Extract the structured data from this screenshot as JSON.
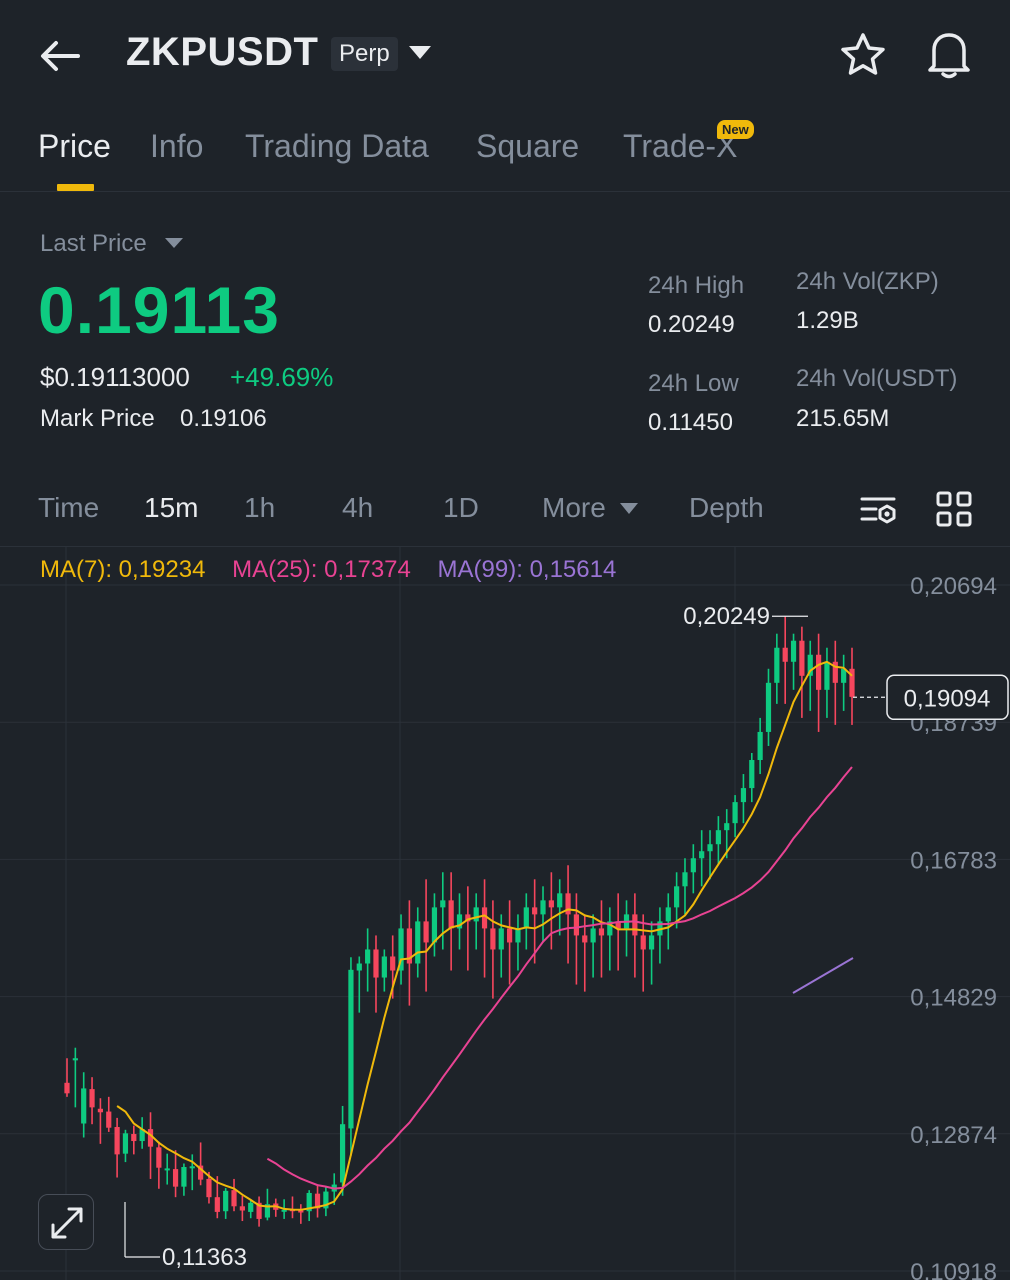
{
  "header": {
    "symbol": "ZKPUSDT",
    "contract_type": "Perp",
    "icons": [
      "back-arrow-icon",
      "caret-down-icon",
      "star-icon",
      "bell-icon"
    ]
  },
  "tabs": [
    {
      "label": "Price",
      "active": true
    },
    {
      "label": "Info",
      "active": false
    },
    {
      "label": "Trading Data",
      "active": false
    },
    {
      "label": "Square",
      "active": false
    },
    {
      "label": "Trade-X",
      "active": false,
      "badge": "New"
    }
  ],
  "price_panel": {
    "last_price_label": "Last Price",
    "last_price": "0.19113",
    "usd_price": "$0.19113000",
    "change_pct": "+49.69%",
    "mark_price_label": "Mark Price",
    "mark_price": "0.19106"
  },
  "stats": {
    "high_label": "24h High",
    "high_value": "0.20249",
    "low_label": "24h Low",
    "low_value": "0.11450",
    "vol_zkp_label": "24h Vol(ZKP)",
    "vol_zkp_value": "1.29B",
    "vol_usdt_label": "24h Vol(USDT)",
    "vol_usdt_value": "215.65M"
  },
  "intervals": {
    "items": [
      "Time",
      "15m",
      "1h",
      "4h",
      "1D",
      "More",
      "Depth"
    ],
    "active": "15m"
  },
  "indicators": {
    "ma7": "MA(7): 0,19234",
    "ma25": "MA(25): 0,17374",
    "ma99": "MA(99): 0,15614"
  },
  "colors": {
    "up": "#0ecb81",
    "down": "#f6465d",
    "ma7": "#f0b90b",
    "ma25": "#e84393",
    "ma99": "#9a74d4",
    "accent": "#f0b90b",
    "background": "#1e2329"
  },
  "chart_data": {
    "type": "candlestick",
    "y_ticks": [
      "0,20694",
      "0,18739",
      "0,16783",
      "0,14829",
      "0,12874",
      "0,10918"
    ],
    "ylim": [
      0.10918,
      0.20694
    ],
    "grid": true,
    "high_marker": "0,20249",
    "low_marker": "0,11363",
    "current_price_label": "0,19094",
    "current_price": 0.19094,
    "candles": [
      [
        0.136,
        0.1395,
        0.1345,
        0.134
      ],
      [
        0.1392,
        0.141,
        0.1395,
        0.1325
      ],
      [
        0.1302,
        0.1375,
        0.1352,
        0.1282
      ],
      [
        0.1351,
        0.1368,
        0.1325,
        0.1301
      ],
      [
        0.1323,
        0.1338,
        0.1318,
        0.1273
      ],
      [
        0.1319,
        0.134,
        0.1296,
        0.129
      ],
      [
        0.1297,
        0.131,
        0.1258,
        0.1225
      ],
      [
        0.1259,
        0.1293,
        0.1288,
        0.1247
      ],
      [
        0.1287,
        0.1299,
        0.1277,
        0.1258
      ],
      [
        0.1277,
        0.1311,
        0.1294,
        0.1266
      ],
      [
        0.1294,
        0.1318,
        0.1269,
        0.1223
      ],
      [
        0.1268,
        0.1276,
        0.1239,
        0.1209
      ],
      [
        0.1238,
        0.1259,
        0.1238,
        0.1215
      ],
      [
        0.1237,
        0.1264,
        0.1212,
        0.1197
      ],
      [
        0.1212,
        0.1245,
        0.124,
        0.1199
      ],
      [
        0.124,
        0.1258,
        0.1241,
        0.1207
      ],
      [
        0.1242,
        0.1275,
        0.1222,
        0.1214
      ],
      [
        0.1223,
        0.1233,
        0.1197,
        0.1188
      ],
      [
        0.1197,
        0.1227,
        0.1176,
        0.1167
      ],
      [
        0.1177,
        0.121,
        0.1206,
        0.1166
      ],
      [
        0.1207,
        0.1223,
        0.1184,
        0.1177
      ],
      [
        0.1184,
        0.1199,
        0.1178,
        0.1163
      ],
      [
        0.1176,
        0.1193,
        0.1189,
        0.1167
      ],
      [
        0.1189,
        0.1198,
        0.1166,
        0.1155
      ],
      [
        0.1168,
        0.1209,
        0.1187,
        0.1164
      ],
      [
        0.1188,
        0.1195,
        0.1179,
        0.1169
      ],
      [
        0.1178,
        0.1194,
        0.1179,
        0.1166
      ],
      [
        0.118,
        0.1198,
        0.1177,
        0.1167
      ],
      [
        0.1178,
        0.1187,
        0.1176,
        0.1159
      ],
      [
        0.1177,
        0.1207,
        0.1203,
        0.1163
      ],
      [
        0.1202,
        0.1215,
        0.1181,
        0.1168
      ],
      [
        0.1181,
        0.1212,
        0.1205,
        0.117
      ],
      [
        0.1205,
        0.1231,
        0.1215,
        0.1186
      ],
      [
        0.1218,
        0.1327,
        0.1301,
        0.1199
      ],
      [
        0.1295,
        0.1539,
        0.1521,
        0.1256
      ],
      [
        0.152,
        0.154,
        0.153,
        0.146
      ],
      [
        0.153,
        0.158,
        0.155,
        0.149
      ],
      [
        0.155,
        0.157,
        0.151,
        0.146
      ],
      [
        0.151,
        0.155,
        0.154,
        0.149
      ],
      [
        0.154,
        0.157,
        0.152,
        0.148
      ],
      [
        0.152,
        0.16,
        0.158,
        0.15
      ],
      [
        0.158,
        0.162,
        0.153,
        0.147
      ],
      [
        0.153,
        0.161,
        0.159,
        0.151
      ],
      [
        0.159,
        0.165,
        0.156,
        0.149
      ],
      [
        0.156,
        0.163,
        0.161,
        0.154
      ],
      [
        0.161,
        0.166,
        0.162,
        0.155
      ],
      [
        0.162,
        0.166,
        0.158,
        0.152
      ],
      [
        0.158,
        0.163,
        0.16,
        0.155
      ],
      [
        0.16,
        0.164,
        0.159,
        0.152
      ],
      [
        0.159,
        0.163,
        0.161,
        0.155
      ],
      [
        0.161,
        0.165,
        0.158,
        0.151
      ],
      [
        0.158,
        0.162,
        0.155,
        0.148
      ],
      [
        0.155,
        0.16,
        0.158,
        0.151
      ],
      [
        0.158,
        0.162,
        0.156,
        0.15
      ],
      [
        0.156,
        0.16,
        0.158,
        0.152
      ],
      [
        0.158,
        0.163,
        0.161,
        0.155
      ],
      [
        0.161,
        0.165,
        0.16,
        0.153
      ],
      [
        0.16,
        0.164,
        0.162,
        0.156
      ],
      [
        0.162,
        0.166,
        0.161,
        0.155
      ],
      [
        0.161,
        0.165,
        0.163,
        0.157
      ],
      [
        0.163,
        0.167,
        0.16,
        0.153
      ],
      [
        0.16,
        0.163,
        0.157,
        0.15
      ],
      [
        0.157,
        0.16,
        0.156,
        0.149
      ],
      [
        0.156,
        0.16,
        0.158,
        0.151
      ],
      [
        0.158,
        0.162,
        0.157,
        0.151
      ],
      [
        0.157,
        0.161,
        0.159,
        0.152
      ],
      [
        0.159,
        0.163,
        0.158,
        0.152
      ],
      [
        0.158,
        0.162,
        0.16,
        0.154
      ],
      [
        0.16,
        0.163,
        0.157,
        0.151
      ],
      [
        0.157,
        0.16,
        0.155,
        0.149
      ],
      [
        0.155,
        0.159,
        0.157,
        0.15
      ],
      [
        0.157,
        0.161,
        0.159,
        0.153
      ],
      [
        0.159,
        0.163,
        0.161,
        0.155
      ],
      [
        0.161,
        0.166,
        0.164,
        0.158
      ],
      [
        0.164,
        0.168,
        0.166,
        0.16
      ],
      [
        0.166,
        0.17,
        0.168,
        0.163
      ],
      [
        0.168,
        0.172,
        0.169,
        0.164
      ],
      [
        0.169,
        0.172,
        0.17,
        0.165
      ],
      [
        0.17,
        0.174,
        0.172,
        0.167
      ],
      [
        0.172,
        0.175,
        0.173,
        0.168
      ],
      [
        0.173,
        0.177,
        0.176,
        0.171
      ],
      [
        0.176,
        0.18,
        0.178,
        0.173
      ],
      [
        0.178,
        0.183,
        0.182,
        0.176
      ],
      [
        0.182,
        0.188,
        0.186,
        0.18
      ],
      [
        0.186,
        0.195,
        0.193,
        0.184
      ],
      [
        0.193,
        0.2,
        0.198,
        0.19
      ],
      [
        0.198,
        0.2025,
        0.196,
        0.19
      ],
      [
        0.196,
        0.2,
        0.199,
        0.192
      ],
      [
        0.199,
        0.201,
        0.194,
        0.188
      ],
      [
        0.194,
        0.199,
        0.197,
        0.189
      ],
      [
        0.197,
        0.2,
        0.192,
        0.186
      ],
      [
        0.192,
        0.198,
        0.196,
        0.188
      ],
      [
        0.196,
        0.199,
        0.193,
        0.187
      ],
      [
        0.193,
        0.197,
        0.195,
        0.189
      ],
      [
        0.195,
        0.198,
        0.191,
        0.187
      ]
    ]
  }
}
